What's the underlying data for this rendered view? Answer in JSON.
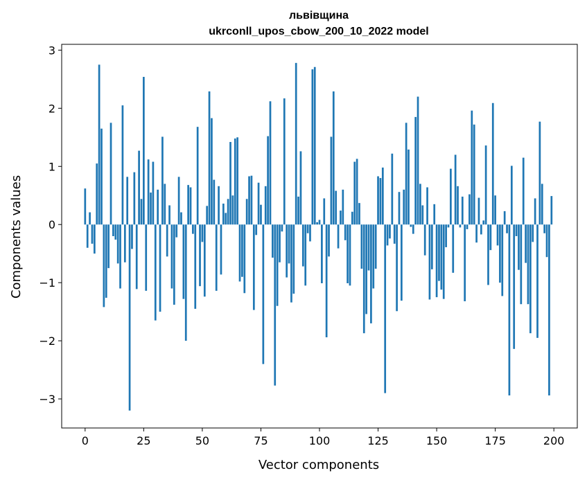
{
  "chart_data": {
    "type": "bar",
    "title": "львівщина",
    "subtitle": "ukrconll_upos_cbow_200_10_2022 model",
    "xlabel": "Vector components",
    "ylabel": "Components values",
    "xlim": [
      -10,
      210
    ],
    "ylim": [
      -3.5,
      3.1
    ],
    "xticks": [
      0,
      25,
      50,
      75,
      100,
      125,
      150,
      175,
      200
    ],
    "xtick_labels": [
      "0",
      "25",
      "50",
      "75",
      "100",
      "125",
      "150",
      "175",
      "200"
    ],
    "yticks": [
      -3,
      -2,
      -1,
      0,
      1,
      2,
      3
    ],
    "ytick_labels": [
      "−3",
      "−2",
      "−1",
      "0",
      "1",
      "2",
      "3"
    ],
    "grid": false,
    "legend": "none",
    "bar_color": "#1f77b4",
    "series": [
      {
        "x": [
          0,
          1,
          2,
          3,
          4,
          5,
          6,
          7,
          8,
          9,
          10,
          11,
          12,
          13,
          14,
          15,
          16,
          17,
          18,
          19,
          20,
          21,
          22,
          23,
          24,
          25,
          26,
          27,
          28,
          29,
          30,
          31,
          32,
          33,
          34,
          35,
          36,
          37,
          38,
          39,
          40,
          41,
          42,
          43,
          44,
          45,
          46,
          47,
          48,
          49,
          50,
          51,
          52,
          53,
          54,
          55,
          56,
          57,
          58,
          59,
          60,
          61,
          62,
          63,
          64,
          65,
          66,
          67,
          68,
          69,
          70,
          71,
          72,
          73,
          74,
          75,
          76,
          77,
          78,
          79,
          80,
          81,
          82,
          83,
          84,
          85,
          86,
          87,
          88,
          89,
          90,
          91,
          92,
          93,
          94,
          95,
          96,
          97,
          98,
          99,
          100,
          101,
          102,
          103,
          104,
          105,
          106,
          107,
          108,
          109,
          110,
          111,
          112,
          113,
          114,
          115,
          116,
          117,
          118,
          119,
          120,
          121,
          122,
          123,
          124,
          125,
          126,
          127,
          128,
          129,
          130,
          131,
          132,
          133,
          134,
          135,
          136,
          137,
          138,
          139,
          140,
          141,
          142,
          143,
          144,
          145,
          146,
          147,
          148,
          149,
          150,
          151,
          152,
          153,
          154,
          155,
          156,
          157,
          158,
          159,
          160,
          161,
          162,
          163,
          164,
          165,
          166,
          167,
          168,
          169,
          170,
          171,
          172,
          173,
          174,
          175,
          176,
          177,
          178,
          179,
          180,
          181,
          182,
          183,
          184,
          185,
          186,
          187,
          188,
          189,
          190,
          191,
          192,
          193,
          194,
          195,
          196,
          197,
          198,
          199
        ],
        "values": [
          0.62,
          -0.4,
          0.21,
          -0.33,
          -0.5,
          1.05,
          2.75,
          1.65,
          -1.42,
          -1.26,
          -0.75,
          1.75,
          -0.2,
          -0.26,
          -0.67,
          -1.1,
          2.05,
          -0.65,
          0.82,
          -3.2,
          -0.42,
          0.9,
          -1.11,
          1.27,
          0.44,
          2.54,
          -1.14,
          1.12,
          0.55,
          1.08,
          -1.65,
          0.6,
          -1.5,
          1.51,
          0.7,
          -0.55,
          0.33,
          -1.1,
          -1.38,
          -0.22,
          0.82,
          0.21,
          -1.28,
          -2.0,
          0.68,
          0.64,
          -0.16,
          -1.45,
          1.68,
          -1.06,
          -0.3,
          -1.24,
          0.32,
          2.29,
          1.83,
          0.77,
          -1.14,
          0.66,
          -0.86,
          0.36,
          0.2,
          0.44,
          1.42,
          0.5,
          1.48,
          1.5,
          -0.98,
          -0.9,
          -1.18,
          0.44,
          0.83,
          0.84,
          -1.47,
          -0.18,
          0.72,
          0.34,
          -2.4,
          0.66,
          1.52,
          2.12,
          -0.57,
          -2.77,
          -1.4,
          -0.65,
          -0.12,
          2.17,
          -0.91,
          -0.67,
          -1.34,
          -1.19,
          2.78,
          0.48,
          1.26,
          -0.72,
          -1.05,
          -0.15,
          -0.29,
          2.67,
          2.71,
          0.04,
          0.08,
          -1.01,
          0.45,
          -1.94,
          -0.55,
          1.51,
          2.29,
          0.58,
          -0.41,
          0.24,
          0.6,
          -0.27,
          -1.01,
          -1.05,
          0.22,
          1.08,
          1.13,
          0.37,
          -0.76,
          -1.87,
          -1.54,
          -0.79,
          -1.7,
          -1.1,
          -0.76,
          0.83,
          0.8,
          0.98,
          -2.9,
          -0.36,
          -0.24,
          1.22,
          -0.33,
          -1.49,
          0.56,
          -1.31,
          0.6,
          1.75,
          1.29,
          -0.04,
          -0.16,
          1.85,
          2.2,
          0.7,
          0.33,
          -0.53,
          0.64,
          -1.29,
          -0.77,
          0.35,
          -1.25,
          -0.97,
          -1.12,
          -1.28,
          -0.39,
          -0.05,
          0.96,
          -0.83,
          1.2,
          0.66,
          -0.05,
          0.48,
          -1.32,
          -0.08,
          0.52,
          1.96,
          1.72,
          -0.31,
          0.46,
          -0.17,
          0.07,
          1.36,
          -1.04,
          -0.44,
          2.09,
          0.5,
          -0.36,
          -1.0,
          -1.23,
          0.23,
          -0.15,
          -2.94,
          1.01,
          -2.14,
          -0.2,
          -0.78,
          -1.37,
          1.15,
          -0.66,
          -1.37,
          -1.87,
          -0.3,
          0.45,
          -1.95,
          1.77,
          0.7,
          -0.15,
          -0.56,
          -2.94,
          0.49
        ]
      }
    ]
  }
}
